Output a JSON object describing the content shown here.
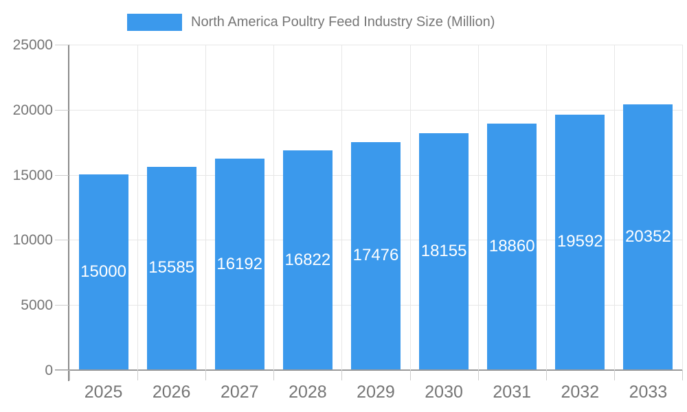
{
  "legend": {
    "label": "North America Poultry Feed Industry Size (Million)"
  },
  "chart_data": {
    "type": "bar",
    "title": "North America Poultry Feed Industry Size (Million)",
    "categories": [
      "2025",
      "2026",
      "2027",
      "2028",
      "2029",
      "2030",
      "2031",
      "2032",
      "2033"
    ],
    "values": [
      15000,
      15585,
      16192,
      16822,
      17476,
      18155,
      18860,
      19592,
      20352
    ],
    "xlabel": "",
    "ylabel": "",
    "ylim": [
      0,
      25000
    ],
    "yticks": [
      0,
      5000,
      10000,
      15000,
      20000,
      25000
    ],
    "grid": true,
    "legend_position": "top",
    "bar_color": "#3B99EC",
    "bar_label_color": "#ffffff",
    "axis_text_color": "#757575",
    "grid_color": "#e6e6e6",
    "axis_line_color": "#999999"
  }
}
